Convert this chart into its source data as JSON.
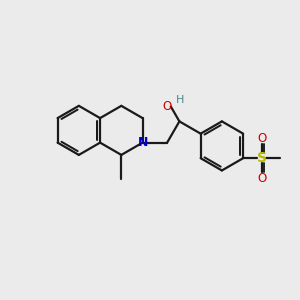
{
  "background_color": "#ebebeb",
  "bond_color": "#1a1a1a",
  "n_color": "#0000cc",
  "o_color": "#cc0000",
  "s_color": "#bbbb00",
  "oh_color": "#4a8888",
  "line_width": 1.6,
  "dbo": 0.055,
  "figsize": [
    3.0,
    3.0
  ],
  "dpi": 100,
  "xlim": [
    -0.5,
    5.5
  ],
  "ylim": [
    -0.2,
    4.2
  ]
}
